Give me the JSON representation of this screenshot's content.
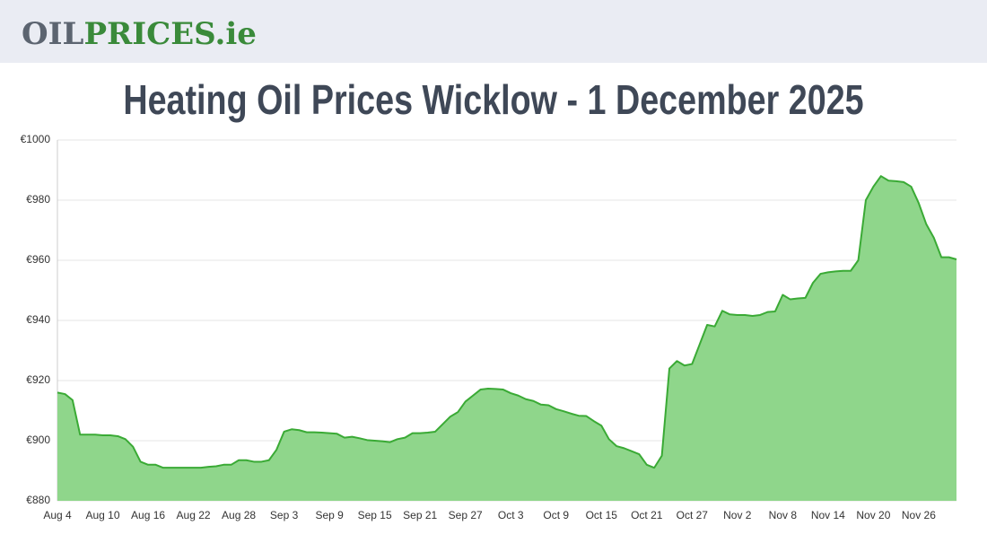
{
  "header": {
    "logo_left": "OIL",
    "logo_right": "PRICES.ie"
  },
  "chart_data": {
    "type": "area",
    "title": "Heating Oil Prices Wicklow - 1 December 2025",
    "categories": [
      "Aug 4",
      null,
      null,
      null,
      null,
      null,
      "Aug 10",
      null,
      null,
      null,
      null,
      null,
      "Aug 16",
      null,
      null,
      null,
      null,
      null,
      "Aug 22",
      null,
      null,
      null,
      null,
      null,
      "Aug 28",
      null,
      null,
      null,
      null,
      null,
      "Sep 3",
      null,
      null,
      null,
      null,
      null,
      "Sep 9",
      null,
      null,
      null,
      null,
      null,
      "Sep 15",
      null,
      null,
      null,
      null,
      null,
      "Sep 21",
      null,
      null,
      null,
      null,
      null,
      "Sep 27",
      null,
      null,
      null,
      null,
      null,
      "Oct 3",
      null,
      null,
      null,
      null,
      null,
      "Oct 9",
      null,
      null,
      null,
      null,
      null,
      "Oct 15",
      null,
      null,
      null,
      null,
      null,
      "Oct 21",
      null,
      null,
      null,
      null,
      null,
      "Oct 27",
      null,
      null,
      null,
      null,
      null,
      "Nov 2",
      null,
      null,
      null,
      null,
      null,
      "Nov 8",
      null,
      null,
      null,
      null,
      null,
      "Nov 14",
      null,
      null,
      null,
      null,
      null,
      "Nov 20",
      null,
      null,
      null,
      null,
      null,
      "Nov 26",
      null,
      null,
      null,
      null,
      null
    ],
    "series": [
      {
        "color": "#3aaa35",
        "fill": "#8fd68b",
        "values": [
          916,
          915.5,
          913.5,
          902,
          902,
          902,
          901.8,
          901.8,
          901.5,
          900.5,
          898,
          893,
          892,
          892,
          891,
          891,
          891,
          891,
          891,
          891,
          891.3,
          891.5,
          892,
          892,
          893.5,
          893.5,
          893,
          893,
          893.5,
          897,
          903,
          903.8,
          903.5,
          902.8,
          902.8,
          902.7,
          902.5,
          902.3,
          901,
          901.3,
          900.8,
          900.2,
          900,
          899.8,
          899.5,
          900.5,
          901,
          902.5,
          902.5,
          902.7,
          903,
          905.5,
          908,
          909.5,
          913,
          915,
          917,
          917.3,
          917.2,
          917,
          915.8,
          915,
          913.8,
          913.2,
          912,
          911.8,
          910.5,
          909.8,
          909,
          908.3,
          908.2,
          906.5,
          905,
          900.5,
          898.2,
          897.5,
          896.5,
          895.5,
          892,
          891,
          895,
          924,
          926.5,
          925,
          925.5,
          932,
          938.5,
          938,
          943.2,
          942,
          941.8,
          941.8,
          941.5,
          941.8,
          942.8,
          943,
          948.5,
          947,
          947.3,
          947.5,
          952.5,
          955.5,
          956,
          956.3,
          956.5,
          956.5,
          960,
          980,
          984.5,
          988,
          986.5,
          986.3,
          986,
          984.5,
          979,
          972,
          967.5,
          961,
          961,
          960.3
        ]
      }
    ],
    "ylim": [
      880,
      1000
    ],
    "yticks": [
      {
        "value": 880,
        "label": "€880"
      },
      {
        "value": 900,
        "label": "€900"
      },
      {
        "value": 920,
        "label": "€920"
      },
      {
        "value": 940,
        "label": "€940"
      },
      {
        "value": 960,
        "label": "€960"
      },
      {
        "value": 980,
        "label": "€980"
      },
      {
        "value": 1000,
        "label": "€1000"
      }
    ],
    "grid": true
  }
}
